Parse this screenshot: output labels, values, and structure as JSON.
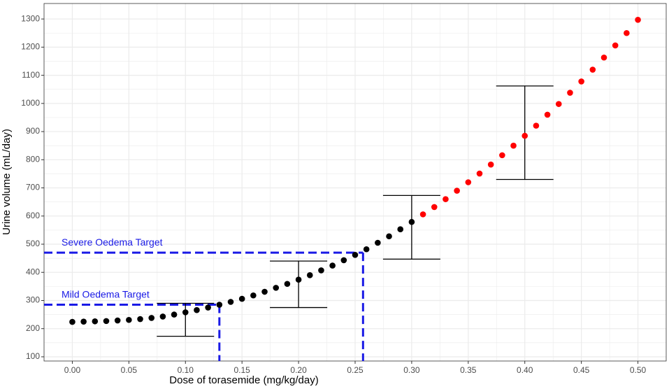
{
  "chart_data": {
    "type": "scatter",
    "x_label": "Dose of torasemide (mg/kg/day)",
    "y_label": "Urine volume (mL/day)",
    "xlim": [
      -0.025,
      0.525
    ],
    "ylim": [
      85,
      1355
    ],
    "xticks": [
      {
        "value": 0,
        "label": "0.00"
      },
      {
        "value": 0.05,
        "label": "0.05"
      },
      {
        "value": 0.1,
        "label": "0.10"
      },
      {
        "value": 0.15,
        "label": "0.15"
      },
      {
        "value": 0.2,
        "label": "0.20"
      },
      {
        "value": 0.25,
        "label": "0.25"
      },
      {
        "value": 0.3,
        "label": "0.30"
      },
      {
        "value": 0.35,
        "label": "0.35"
      },
      {
        "value": 0.4,
        "label": "0.40"
      },
      {
        "value": 0.45,
        "label": "0.45"
      },
      {
        "value": 0.5,
        "label": "0.50"
      }
    ],
    "yticks": [
      100,
      200,
      300,
      400,
      500,
      600,
      700,
      800,
      900,
      1000,
      1100,
      1200,
      1300
    ],
    "grid": true,
    "series": [
      {
        "color": "#000000",
        "x": [
          0,
          0.01,
          0.02,
          0.03,
          0.04,
          0.05,
          0.06,
          0.07,
          0.08,
          0.09,
          0.1,
          0.11,
          0.12,
          0.13,
          0.14,
          0.15,
          0.16,
          0.17,
          0.18,
          0.19,
          0.2,
          0.21,
          0.22,
          0.23,
          0.24,
          0.25,
          0.26,
          0.27,
          0.28,
          0.29,
          0.3
        ],
        "values": [
          224,
          225,
          226,
          227,
          229,
          231,
          234,
          238,
          243,
          250,
          258,
          266,
          275,
          285,
          295,
          306,
          318,
          331,
          345,
          359,
          374,
          390,
          407,
          424,
          443,
          462,
          482,
          505,
          528,
          553,
          579
        ]
      },
      {
        "color": "#ff0000",
        "x": [
          0.31,
          0.32,
          0.33,
          0.34,
          0.35,
          0.36,
          0.37,
          0.38,
          0.39,
          0.4,
          0.41,
          0.42,
          0.43,
          0.44,
          0.45,
          0.46,
          0.47,
          0.48,
          0.49,
          0.5
        ],
        "values": [
          606,
          632,
          660,
          690,
          720,
          751,
          783,
          816,
          850,
          885,
          921,
          960,
          998,
          1038,
          1078,
          1120,
          1163,
          1206,
          1250,
          1297
        ]
      }
    ],
    "error_bars": {
      "color": "#000000",
      "x": [
        0.1,
        0.2,
        0.3,
        0.4
      ],
      "low": [
        173,
        275,
        447,
        730
      ],
      "high": [
        290,
        440,
        673,
        1062
      ]
    },
    "targets": {
      "color": "#1a1ae6",
      "items": [
        {
          "label": "Mild Oedema Target",
          "value": 285,
          "dose": 0.13
        },
        {
          "label": "Severe Oedema Target",
          "value": 470,
          "dose": 0.257
        }
      ]
    }
  }
}
